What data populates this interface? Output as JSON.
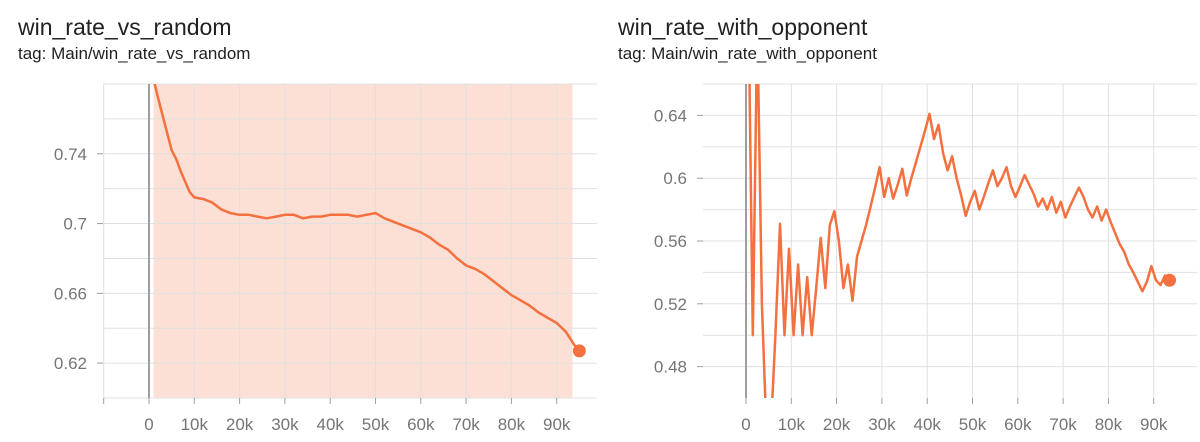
{
  "charts": [
    {
      "title": "win_rate_vs_random",
      "tag": "tag: Main/win_rate_vs_random"
    },
    {
      "title": "win_rate_with_opponent",
      "tag": "tag: Main/win_rate_with_opponent"
    }
  ],
  "chart_data": [
    {
      "type": "line",
      "title": "win_rate_vs_random",
      "subtitle": "tag: Main/win_rate_vs_random",
      "xlabel": "",
      "ylabel": "",
      "grid": true,
      "xlim": [
        -10000,
        100000
      ],
      "ylim": [
        0.6,
        0.78
      ],
      "x_ticks": [
        0,
        10000,
        20000,
        30000,
        40000,
        50000,
        60000,
        70000,
        80000,
        90000
      ],
      "x_tick_labels": [
        "0",
        "10k",
        "20k",
        "30k",
        "40k",
        "50k",
        "60k",
        "70k",
        "80k",
        "90k"
      ],
      "y_ticks": [
        0.62,
        0.66,
        0.7,
        0.74
      ],
      "y_tick_labels": [
        "0.62",
        "0.66",
        "0.7",
        "0.74"
      ],
      "raw_band": {
        "x_start": 1000,
        "x_end": 93500,
        "color": "#fbd5c8"
      },
      "series": [
        {
          "color": "#f4703f",
          "x": [
            0,
            1000,
            2000,
            3000,
            4000,
            5000,
            6000,
            7000,
            8000,
            9000,
            10000,
            12000,
            14000,
            16000,
            18000,
            20000,
            22000,
            24000,
            26000,
            28000,
            30000,
            32000,
            34000,
            36000,
            38000,
            40000,
            42000,
            44000,
            46000,
            48000,
            50000,
            52000,
            54000,
            56000,
            58000,
            60000,
            62000,
            64000,
            66000,
            68000,
            70000,
            72000,
            74000,
            76000,
            78000,
            80000,
            82000,
            84000,
            86000,
            88000,
            90000,
            92000,
            94000,
            95000
          ],
          "y": [
            0.79,
            0.783,
            0.772,
            0.762,
            0.752,
            0.742,
            0.737,
            0.73,
            0.724,
            0.718,
            0.715,
            0.714,
            0.712,
            0.708,
            0.706,
            0.705,
            0.705,
            0.704,
            0.703,
            0.704,
            0.705,
            0.705,
            0.703,
            0.704,
            0.704,
            0.705,
            0.705,
            0.705,
            0.704,
            0.705,
            0.706,
            0.703,
            0.701,
            0.699,
            0.697,
            0.695,
            0.692,
            0.688,
            0.685,
            0.68,
            0.676,
            0.674,
            0.671,
            0.667,
            0.663,
            0.659,
            0.656,
            0.653,
            0.649,
            0.646,
            0.643,
            0.638,
            0.63,
            0.627
          ]
        }
      ],
      "end_marker": true
    },
    {
      "type": "line",
      "title": "win_rate_with_opponent",
      "subtitle": "tag: Main/win_rate_with_opponent",
      "xlabel": "",
      "ylabel": "",
      "grid": true,
      "xlim": [
        -10000,
        100000
      ],
      "ylim": [
        0.46,
        0.66
      ],
      "x_ticks": [
        0,
        10000,
        20000,
        30000,
        40000,
        50000,
        60000,
        70000,
        80000,
        90000
      ],
      "x_tick_labels": [
        "0",
        "10k",
        "20k",
        "30k",
        "40k",
        "50k",
        "60k",
        "70k",
        "80k",
        "90k"
      ],
      "y_ticks": [
        0.48,
        0.52,
        0.56,
        0.6,
        0.64
      ],
      "y_tick_labels": [
        "0.48",
        "0.52",
        "0.56",
        "0.6",
        "0.64"
      ],
      "series": [
        {
          "color": "#f4703f",
          "x": [
            500,
            1500,
            2500,
            3500,
            4500,
            5500,
            6500,
            7500,
            8500,
            9500,
            10500,
            11500,
            12500,
            13500,
            14500,
            15500,
            16500,
            17500,
            18500,
            19500,
            20500,
            21500,
            22500,
            23500,
            24500,
            25500,
            26500,
            27500,
            28500,
            29500,
            30500,
            31500,
            32500,
            33500,
            34500,
            35500,
            36500,
            37500,
            38500,
            39500,
            40500,
            41500,
            42500,
            43500,
            44500,
            45500,
            46500,
            47500,
            48500,
            49500,
            50500,
            51500,
            52500,
            53500,
            54500,
            55500,
            56500,
            57500,
            58500,
            59500,
            60500,
            61500,
            62500,
            63500,
            64500,
            65500,
            66500,
            67500,
            68500,
            69500,
            70500,
            71500,
            72500,
            73500,
            74500,
            75500,
            76500,
            77500,
            78500,
            79500,
            80500,
            81500,
            82500,
            83500,
            84500,
            85500,
            86500,
            87500,
            88500,
            89500,
            90500,
            91500,
            92500,
            93500
          ],
          "y": [
            0.72,
            0.5,
            0.7,
            0.52,
            0.44,
            0.44,
            0.5,
            0.571,
            0.5,
            0.555,
            0.5,
            0.545,
            0.5,
            0.537,
            0.5,
            0.53,
            0.562,
            0.53,
            0.57,
            0.579,
            0.56,
            0.53,
            0.545,
            0.522,
            0.55,
            0.56,
            0.57,
            0.582,
            0.594,
            0.607,
            0.588,
            0.6,
            0.587,
            0.596,
            0.606,
            0.589,
            0.6,
            0.61,
            0.62,
            0.63,
            0.641,
            0.625,
            0.634,
            0.616,
            0.605,
            0.614,
            0.6,
            0.589,
            0.576,
            0.585,
            0.592,
            0.58,
            0.588,
            0.597,
            0.605,
            0.595,
            0.6,
            0.607,
            0.595,
            0.588,
            0.595,
            0.602,
            0.596,
            0.59,
            0.582,
            0.587,
            0.58,
            0.588,
            0.578,
            0.585,
            0.575,
            0.582,
            0.588,
            0.594,
            0.588,
            0.58,
            0.575,
            0.582,
            0.573,
            0.58,
            0.572,
            0.565,
            0.558,
            0.553,
            0.545,
            0.54,
            0.534,
            0.528,
            0.534,
            0.544,
            0.535,
            0.532,
            0.538,
            0.535
          ]
        }
      ],
      "end_marker": true
    }
  ]
}
